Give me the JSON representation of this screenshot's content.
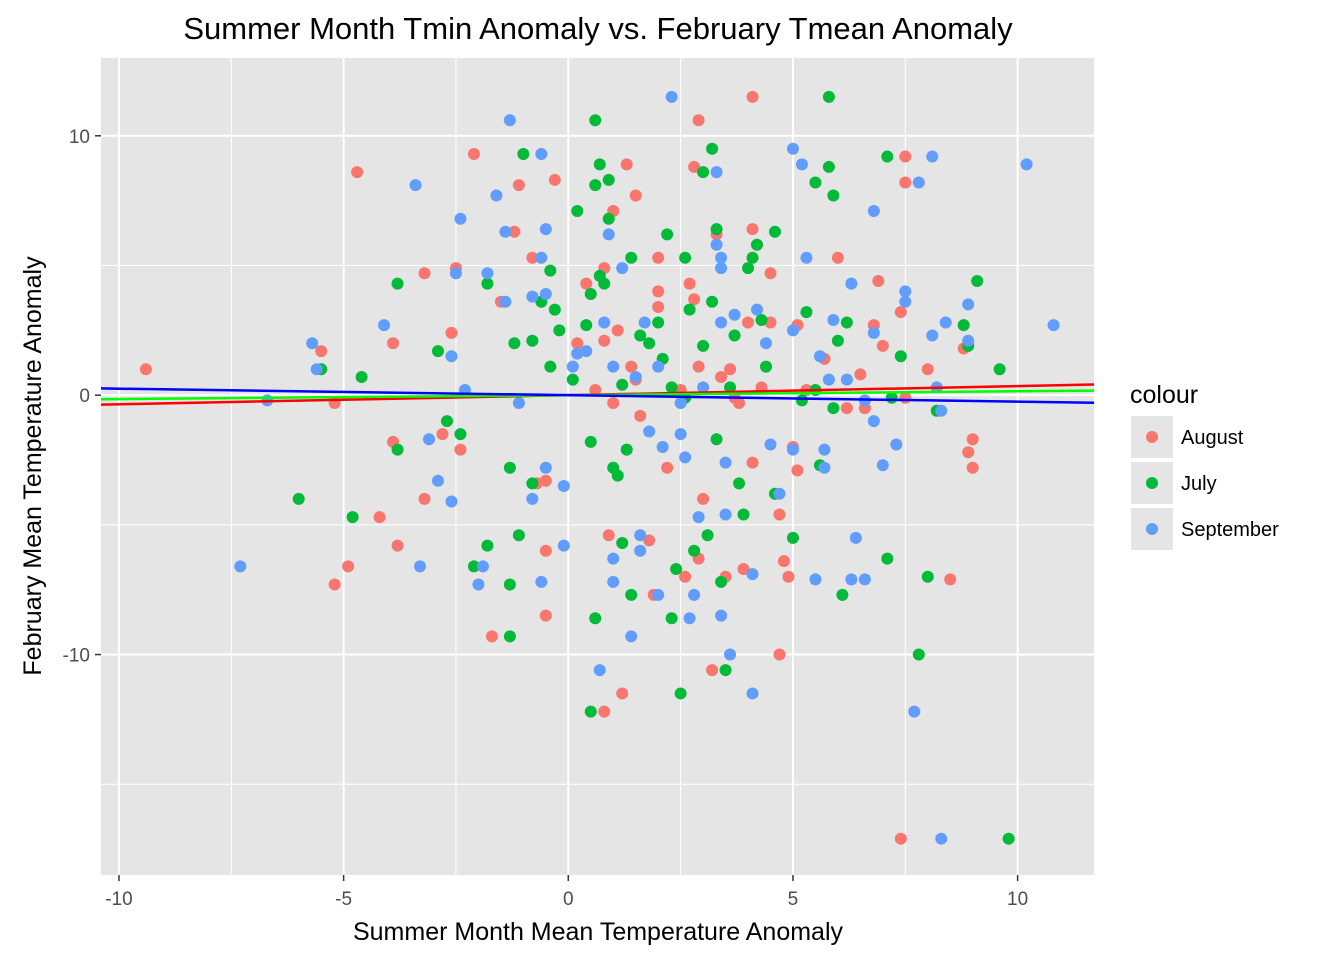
{
  "chart_data": {
    "type": "scatter",
    "title": "Summer Month Tmin Anomaly vs. February Tmean Anomaly",
    "xlabel": "Summer Month Mean Temperature Anomaly",
    "ylabel": "February Mean Temperature Anomaly",
    "xlim": [
      -10.4,
      11.7
    ],
    "ylim": [
      -18.5,
      13.0
    ],
    "x_ticks": [
      -10,
      -5,
      0,
      5,
      10
    ],
    "x_tick_labels": [
      "-10",
      "-5",
      "0",
      "5",
      "10"
    ],
    "y_ticks": [
      -10,
      0,
      10
    ],
    "y_tick_labels": [
      "-10",
      "0",
      "10"
    ],
    "grid": true,
    "legend": {
      "title": "colour",
      "placement": "right"
    },
    "colors": {
      "panel": "#e5e5e5",
      "grid": "#ffffff"
    },
    "series": [
      {
        "name": "August",
        "color": "#f8766d",
        "fit": {
          "slope": 0.035,
          "intercept": 0.0,
          "color": "#ff0000"
        },
        "points": [
          [
            -9.4,
            1.0
          ],
          [
            -5.5,
            1.7
          ],
          [
            -5.2,
            -0.3
          ],
          [
            -5.2,
            -7.3
          ],
          [
            -4.9,
            -6.6
          ],
          [
            -4.7,
            8.6
          ],
          [
            -4.2,
            -4.7
          ],
          [
            -3.9,
            2.0
          ],
          [
            -3.8,
            -5.8
          ],
          [
            -3.9,
            -1.8
          ],
          [
            -3.2,
            4.7
          ],
          [
            -3.2,
            -4.0
          ],
          [
            -2.8,
            -1.5
          ],
          [
            -2.6,
            2.4
          ],
          [
            -2.5,
            4.9
          ],
          [
            -2.4,
            -2.1
          ],
          [
            -2.1,
            9.3
          ],
          [
            -1.7,
            -9.3
          ],
          [
            -1.5,
            3.6
          ],
          [
            -1.2,
            6.3
          ],
          [
            -1.1,
            8.1
          ],
          [
            -0.8,
            5.3
          ],
          [
            -0.7,
            -3.4
          ],
          [
            -0.5,
            -6.0
          ],
          [
            -0.5,
            -8.5
          ],
          [
            -0.3,
            8.3
          ],
          [
            -0.5,
            -3.3
          ],
          [
            0.2,
            2.0
          ],
          [
            0.4,
            4.3
          ],
          [
            0.8,
            4.9
          ],
          [
            0.9,
            -5.4
          ],
          [
            0.8,
            2.1
          ],
          [
            1.0,
            7.1
          ],
          [
            1.1,
            2.5
          ],
          [
            1.3,
            8.9
          ],
          [
            1.5,
            7.7
          ],
          [
            1.5,
            0.6
          ],
          [
            1.8,
            -5.6
          ],
          [
            2.0,
            4.0
          ],
          [
            2.0,
            3.4
          ],
          [
            2.0,
            5.3
          ],
          [
            2.2,
            -2.8
          ],
          [
            2.6,
            -7.0
          ],
          [
            2.7,
            4.3
          ],
          [
            2.9,
            10.6
          ],
          [
            2.8,
            8.8
          ],
          [
            2.8,
            3.7
          ],
          [
            2.9,
            1.1
          ],
          [
            3.0,
            -4.0
          ],
          [
            3.3,
            6.2
          ],
          [
            3.4,
            0.7
          ],
          [
            3.5,
            -7.0
          ],
          [
            3.6,
            1.0
          ],
          [
            3.8,
            -0.3
          ],
          [
            3.9,
            -6.7
          ],
          [
            4.0,
            2.8
          ],
          [
            4.1,
            11.5
          ],
          [
            4.1,
            6.4
          ],
          [
            4.2,
            5.8
          ],
          [
            4.1,
            -2.6
          ],
          [
            4.5,
            4.7
          ],
          [
            4.5,
            2.8
          ],
          [
            4.7,
            -4.6
          ],
          [
            4.7,
            -10.0
          ],
          [
            4.9,
            -7.0
          ],
          [
            5.0,
            -2.0
          ],
          [
            5.1,
            2.7
          ],
          [
            5.1,
            -2.9
          ],
          [
            5.3,
            0.2
          ],
          [
            5.7,
            1.4
          ],
          [
            6.0,
            5.3
          ],
          [
            6.2,
            -0.5
          ],
          [
            6.5,
            0.8
          ],
          [
            6.6,
            -0.5
          ],
          [
            6.8,
            2.7
          ],
          [
            6.9,
            4.4
          ],
          [
            7.0,
            1.9
          ],
          [
            7.4,
            3.2
          ],
          [
            7.5,
            9.2
          ],
          [
            7.5,
            8.2
          ],
          [
            7.4,
            -17.1
          ],
          [
            7.5,
            -0.1
          ],
          [
            8.0,
            1.0
          ],
          [
            8.8,
            1.8
          ],
          [
            8.9,
            -2.2
          ],
          [
            9.0,
            -2.8
          ],
          [
            9.0,
            -1.7
          ],
          [
            8.5,
            -7.1
          ],
          [
            0.8,
            -12.2
          ],
          [
            1.2,
            -11.5
          ],
          [
            3.2,
            -10.6
          ],
          [
            1.0,
            -0.3
          ],
          [
            1.4,
            1.1
          ],
          [
            2.5,
            0.2
          ],
          [
            3.7,
            -0.1
          ],
          [
            4.3,
            0.3
          ],
          [
            0.6,
            0.2
          ],
          [
            1.9,
            -7.7
          ],
          [
            2.9,
            -6.3
          ],
          [
            1.6,
            -0.8
          ],
          [
            4.8,
            -6.4
          ]
        ]
      },
      {
        "name": "July",
        "color": "#00ba38",
        "fit": {
          "slope": 0.015,
          "intercept": 0.0,
          "color": "#00ff00"
        },
        "points": [
          [
            -6.0,
            -4.0
          ],
          [
            -5.5,
            1.0
          ],
          [
            -4.8,
            -4.7
          ],
          [
            -4.6,
            0.7
          ],
          [
            -3.8,
            4.3
          ],
          [
            -3.8,
            -2.1
          ],
          [
            -2.9,
            1.7
          ],
          [
            -2.7,
            -1.0
          ],
          [
            -2.4,
            -1.5
          ],
          [
            -2.1,
            -6.6
          ],
          [
            -1.8,
            4.3
          ],
          [
            -1.8,
            -5.8
          ],
          [
            -1.3,
            -2.8
          ],
          [
            -1.3,
            -7.3
          ],
          [
            -1.3,
            -9.3
          ],
          [
            -1.2,
            2.0
          ],
          [
            -1.1,
            -5.4
          ],
          [
            -1.0,
            9.3
          ],
          [
            -0.8,
            2.1
          ],
          [
            -0.8,
            -3.4
          ],
          [
            -0.6,
            3.6
          ],
          [
            -0.4,
            4.8
          ],
          [
            -0.4,
            1.1
          ],
          [
            -0.3,
            3.3
          ],
          [
            -0.2,
            2.5
          ],
          [
            0.2,
            7.1
          ],
          [
            0.1,
            0.6
          ],
          [
            0.4,
            2.7
          ],
          [
            0.5,
            3.9
          ],
          [
            0.5,
            -1.8
          ],
          [
            0.6,
            10.6
          ],
          [
            0.6,
            8.1
          ],
          [
            0.7,
            8.9
          ],
          [
            0.8,
            4.3
          ],
          [
            0.9,
            6.8
          ],
          [
            0.9,
            8.3
          ],
          [
            1.0,
            -2.8
          ],
          [
            1.1,
            -3.1
          ],
          [
            1.2,
            -5.7
          ],
          [
            1.3,
            -2.1
          ],
          [
            1.4,
            5.3
          ],
          [
            1.6,
            2.3
          ],
          [
            1.8,
            2.0
          ],
          [
            2.0,
            2.8
          ],
          [
            2.1,
            1.4
          ],
          [
            2.2,
            6.2
          ],
          [
            2.3,
            0.3
          ],
          [
            2.4,
            -6.7
          ],
          [
            2.5,
            -11.5
          ],
          [
            2.6,
            5.3
          ],
          [
            2.7,
            3.3
          ],
          [
            2.8,
            -6.0
          ],
          [
            3.0,
            1.9
          ],
          [
            3.0,
            8.6
          ],
          [
            3.1,
            -5.4
          ],
          [
            3.2,
            9.5
          ],
          [
            3.2,
            3.6
          ],
          [
            3.3,
            6.4
          ],
          [
            3.3,
            -1.7
          ],
          [
            3.4,
            -7.2
          ],
          [
            3.5,
            -10.6
          ],
          [
            3.6,
            0.3
          ],
          [
            3.7,
            2.3
          ],
          [
            3.8,
            -3.4
          ],
          [
            3.9,
            -4.6
          ],
          [
            4.0,
            4.9
          ],
          [
            4.1,
            5.3
          ],
          [
            4.2,
            5.8
          ],
          [
            4.3,
            2.9
          ],
          [
            4.4,
            1.1
          ],
          [
            4.6,
            6.3
          ],
          [
            4.6,
            -3.8
          ],
          [
            5.0,
            -5.5
          ],
          [
            5.2,
            -0.2
          ],
          [
            5.3,
            3.2
          ],
          [
            5.5,
            8.2
          ],
          [
            5.5,
            0.2
          ],
          [
            5.6,
            -2.7
          ],
          [
            5.8,
            8.8
          ],
          [
            5.8,
            11.5
          ],
          [
            5.9,
            7.7
          ],
          [
            5.9,
            -0.5
          ],
          [
            6.0,
            2.1
          ],
          [
            6.1,
            -7.7
          ],
          [
            6.2,
            2.8
          ],
          [
            7.1,
            9.2
          ],
          [
            7.1,
            -6.3
          ],
          [
            7.2,
            -0.1
          ],
          [
            7.4,
            1.5
          ],
          [
            7.8,
            -10.0
          ],
          [
            8.0,
            -7.0
          ],
          [
            8.2,
            -0.6
          ],
          [
            8.8,
            2.7
          ],
          [
            8.9,
            1.9
          ],
          [
            9.1,
            4.4
          ],
          [
            9.6,
            1.0
          ],
          [
            9.8,
            -17.1
          ],
          [
            0.5,
            -12.2
          ],
          [
            0.6,
            -8.6
          ],
          [
            2.3,
            -8.6
          ],
          [
            1.4,
            -7.7
          ],
          [
            0.7,
            4.6
          ],
          [
            1.2,
            0.4
          ],
          [
            2.6,
            -0.1
          ]
        ]
      },
      {
        "name": "September",
        "color": "#619cff",
        "fit": {
          "slope": -0.025,
          "intercept": 0.0,
          "color": "#0000ff"
        },
        "points": [
          [
            -7.3,
            -6.6
          ],
          [
            -6.7,
            -0.2
          ],
          [
            -5.7,
            2.0
          ],
          [
            -5.6,
            1.0
          ],
          [
            -4.1,
            2.7
          ],
          [
            -3.4,
            8.1
          ],
          [
            -3.3,
            -6.6
          ],
          [
            -3.1,
            -1.7
          ],
          [
            -2.9,
            -3.3
          ],
          [
            -2.6,
            -4.1
          ],
          [
            -2.6,
            1.5
          ],
          [
            -2.5,
            4.7
          ],
          [
            -2.4,
            6.8
          ],
          [
            -2.3,
            0.2
          ],
          [
            -2.0,
            -7.3
          ],
          [
            -1.9,
            -6.6
          ],
          [
            -1.8,
            4.7
          ],
          [
            -1.6,
            7.7
          ],
          [
            -1.4,
            6.3
          ],
          [
            -1.4,
            3.6
          ],
          [
            -1.3,
            10.6
          ],
          [
            -1.1,
            -0.3
          ],
          [
            -0.8,
            3.8
          ],
          [
            -0.8,
            -4.0
          ],
          [
            -0.6,
            9.3
          ],
          [
            -0.6,
            5.3
          ],
          [
            -0.5,
            6.4
          ],
          [
            -0.5,
            3.9
          ],
          [
            -0.5,
            -2.8
          ],
          [
            -0.6,
            -7.2
          ],
          [
            -0.1,
            -5.8
          ],
          [
            -0.1,
            -3.5
          ],
          [
            0.1,
            1.1
          ],
          [
            0.2,
            1.6
          ],
          [
            0.7,
            -10.6
          ],
          [
            0.8,
            2.8
          ],
          [
            0.9,
            6.2
          ],
          [
            1.0,
            1.1
          ],
          [
            1.0,
            -6.3
          ],
          [
            1.0,
            -7.2
          ],
          [
            1.2,
            4.9
          ],
          [
            1.4,
            -9.3
          ],
          [
            1.6,
            -5.4
          ],
          [
            1.6,
            -6.0
          ],
          [
            1.7,
            2.8
          ],
          [
            2.0,
            -7.7
          ],
          [
            2.0,
            1.1
          ],
          [
            2.1,
            -2.0
          ],
          [
            2.3,
            11.5
          ],
          [
            2.5,
            -1.5
          ],
          [
            2.6,
            -2.4
          ],
          [
            2.7,
            -8.6
          ],
          [
            2.8,
            -7.7
          ],
          [
            2.9,
            -4.7
          ],
          [
            3.0,
            0.3
          ],
          [
            3.3,
            8.6
          ],
          [
            3.3,
            5.8
          ],
          [
            3.4,
            5.3
          ],
          [
            3.4,
            4.9
          ],
          [
            3.4,
            2.8
          ],
          [
            3.5,
            -2.6
          ],
          [
            3.5,
            -4.6
          ],
          [
            3.6,
            -10.0
          ],
          [
            3.4,
            -8.5
          ],
          [
            3.7,
            3.1
          ],
          [
            4.1,
            -11.5
          ],
          [
            4.1,
            -6.9
          ],
          [
            4.2,
            3.3
          ],
          [
            4.4,
            2.0
          ],
          [
            4.5,
            -1.9
          ],
          [
            4.7,
            -3.8
          ],
          [
            5.0,
            9.5
          ],
          [
            5.0,
            2.5
          ],
          [
            5.0,
            -2.1
          ],
          [
            5.2,
            8.9
          ],
          [
            5.3,
            5.3
          ],
          [
            5.5,
            -7.1
          ],
          [
            5.6,
            1.5
          ],
          [
            5.7,
            -2.1
          ],
          [
            5.7,
            -2.8
          ],
          [
            5.8,
            0.6
          ],
          [
            5.9,
            2.9
          ],
          [
            6.2,
            0.6
          ],
          [
            6.3,
            4.3
          ],
          [
            6.3,
            -7.1
          ],
          [
            6.4,
            -5.5
          ],
          [
            6.6,
            -7.1
          ],
          [
            6.6,
            -0.2
          ],
          [
            6.8,
            7.1
          ],
          [
            6.8,
            2.4
          ],
          [
            6.8,
            -1.0
          ],
          [
            7.0,
            -2.7
          ],
          [
            7.3,
            -1.9
          ],
          [
            7.5,
            4.0
          ],
          [
            7.5,
            3.6
          ],
          [
            7.7,
            -12.2
          ],
          [
            7.8,
            8.2
          ],
          [
            8.1,
            9.2
          ],
          [
            8.1,
            2.3
          ],
          [
            8.2,
            0.3
          ],
          [
            8.3,
            -0.6
          ],
          [
            8.3,
            -17.1
          ],
          [
            8.4,
            2.8
          ],
          [
            8.9,
            2.1
          ],
          [
            8.9,
            3.5
          ],
          [
            10.2,
            8.9
          ],
          [
            10.8,
            2.7
          ],
          [
            1.5,
            0.7
          ],
          [
            2.5,
            -0.3
          ],
          [
            0.4,
            1.7
          ],
          [
            1.8,
            -1.4
          ]
        ]
      }
    ]
  }
}
